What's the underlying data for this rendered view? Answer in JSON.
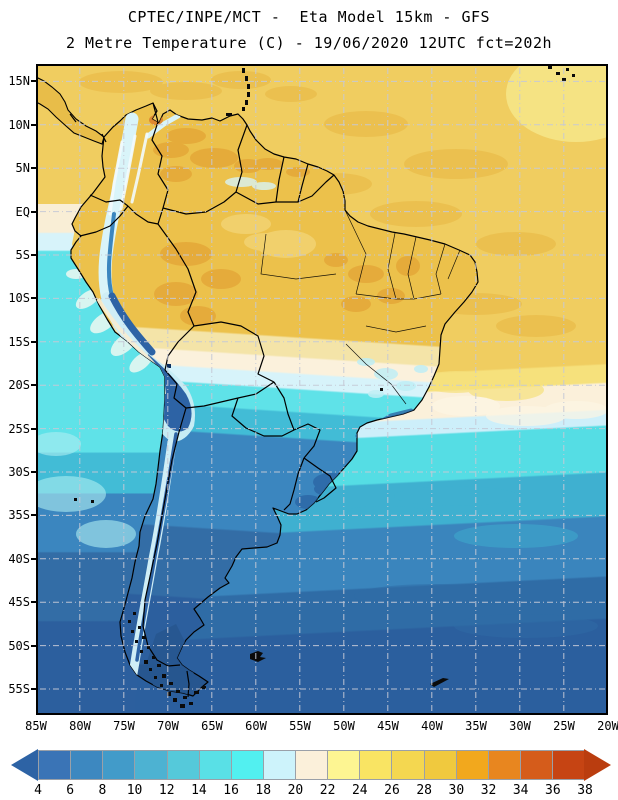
{
  "header": {
    "line1": "CPTEC/INPE/MCT -  Eta Model 15km - GFS",
    "line2": "2 Metre Temperature (C) - 19/06/2020 12UTC fct=202h"
  },
  "map": {
    "lat_labels": [
      "15N",
      "10N",
      "5N",
      "EQ",
      "5S",
      "10S",
      "15S",
      "20S",
      "25S",
      "30S",
      "35S",
      "40S",
      "45S",
      "50S",
      "55S"
    ],
    "lon_labels": [
      "85W",
      "80W",
      "75W",
      "70W",
      "65W",
      "60W",
      "55W",
      "50W",
      "45W",
      "40W",
      "35W",
      "30W",
      "25W",
      "20W"
    ]
  },
  "colorbar": {
    "unit": "C",
    "tick_values": [
      "4",
      "6",
      "8",
      "10",
      "12",
      "14",
      "16",
      "18",
      "20",
      "22",
      "24",
      "26",
      "28",
      "30",
      "32",
      "34",
      "36",
      "38"
    ],
    "cell_colors": [
      "#3a74b6",
      "#3d88c0",
      "#429bc9",
      "#4db2d2",
      "#55c9da",
      "#59e0e6",
      "#52f0f0",
      "#cdf3fb",
      "#fbf0da",
      "#fdf592",
      "#f9e463",
      "#f4d750",
      "#f0c93e",
      "#f2a81d",
      "#e8861f",
      "#d55c1b",
      "#c64413"
    ],
    "left_arrow_color": "#2d63a5",
    "right_arrow_color": "#ba3d0f"
  }
}
